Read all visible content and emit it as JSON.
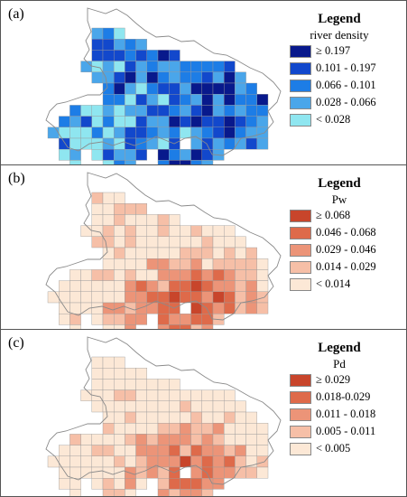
{
  "panels": [
    {
      "label": "(a)",
      "legend_title": "Legend",
      "variable": "river density",
      "classes": [
        {
          "label": "≥ 0.197",
          "color": "#08198c"
        },
        {
          "label": "0.101 - 0.197",
          "color": "#1248cc"
        },
        {
          "label": "0.066 - 0.101",
          "color": "#1d7de6"
        },
        {
          "label": "0.028 - 0.066",
          "color": "#4aa6ea"
        },
        {
          "label": "< 0.028",
          "color": "#8fe6f0"
        }
      ]
    },
    {
      "label": "(b)",
      "legend_title": "Legend",
      "variable": "Pw",
      "classes": [
        {
          "label": "≥ 0.068",
          "color": "#c8452b"
        },
        {
          "label": "0.046 - 0.068",
          "color": "#de6a4a"
        },
        {
          "label": "0.029 - 0.046",
          "color": "#ec9478"
        },
        {
          "label": "0.014 - 0.029",
          "color": "#f6bfa7"
        },
        {
          "label": "< 0.014",
          "color": "#fce8d6"
        }
      ]
    },
    {
      "label": "(c)",
      "legend_title": "Legend",
      "variable": "Pd",
      "classes": [
        {
          "label": "≥ 0.029",
          "color": "#c8452b"
        },
        {
          "label": "0.018-0.029",
          "color": "#de6a4a"
        },
        {
          "label": "0.011 - 0.018",
          "color": "#ec9478"
        },
        {
          "label": "0.005 - 0.011",
          "color": "#f6bfa7"
        },
        {
          "label": "< 0.005",
          "color": "#fce8d6"
        }
      ]
    }
  ]
}
